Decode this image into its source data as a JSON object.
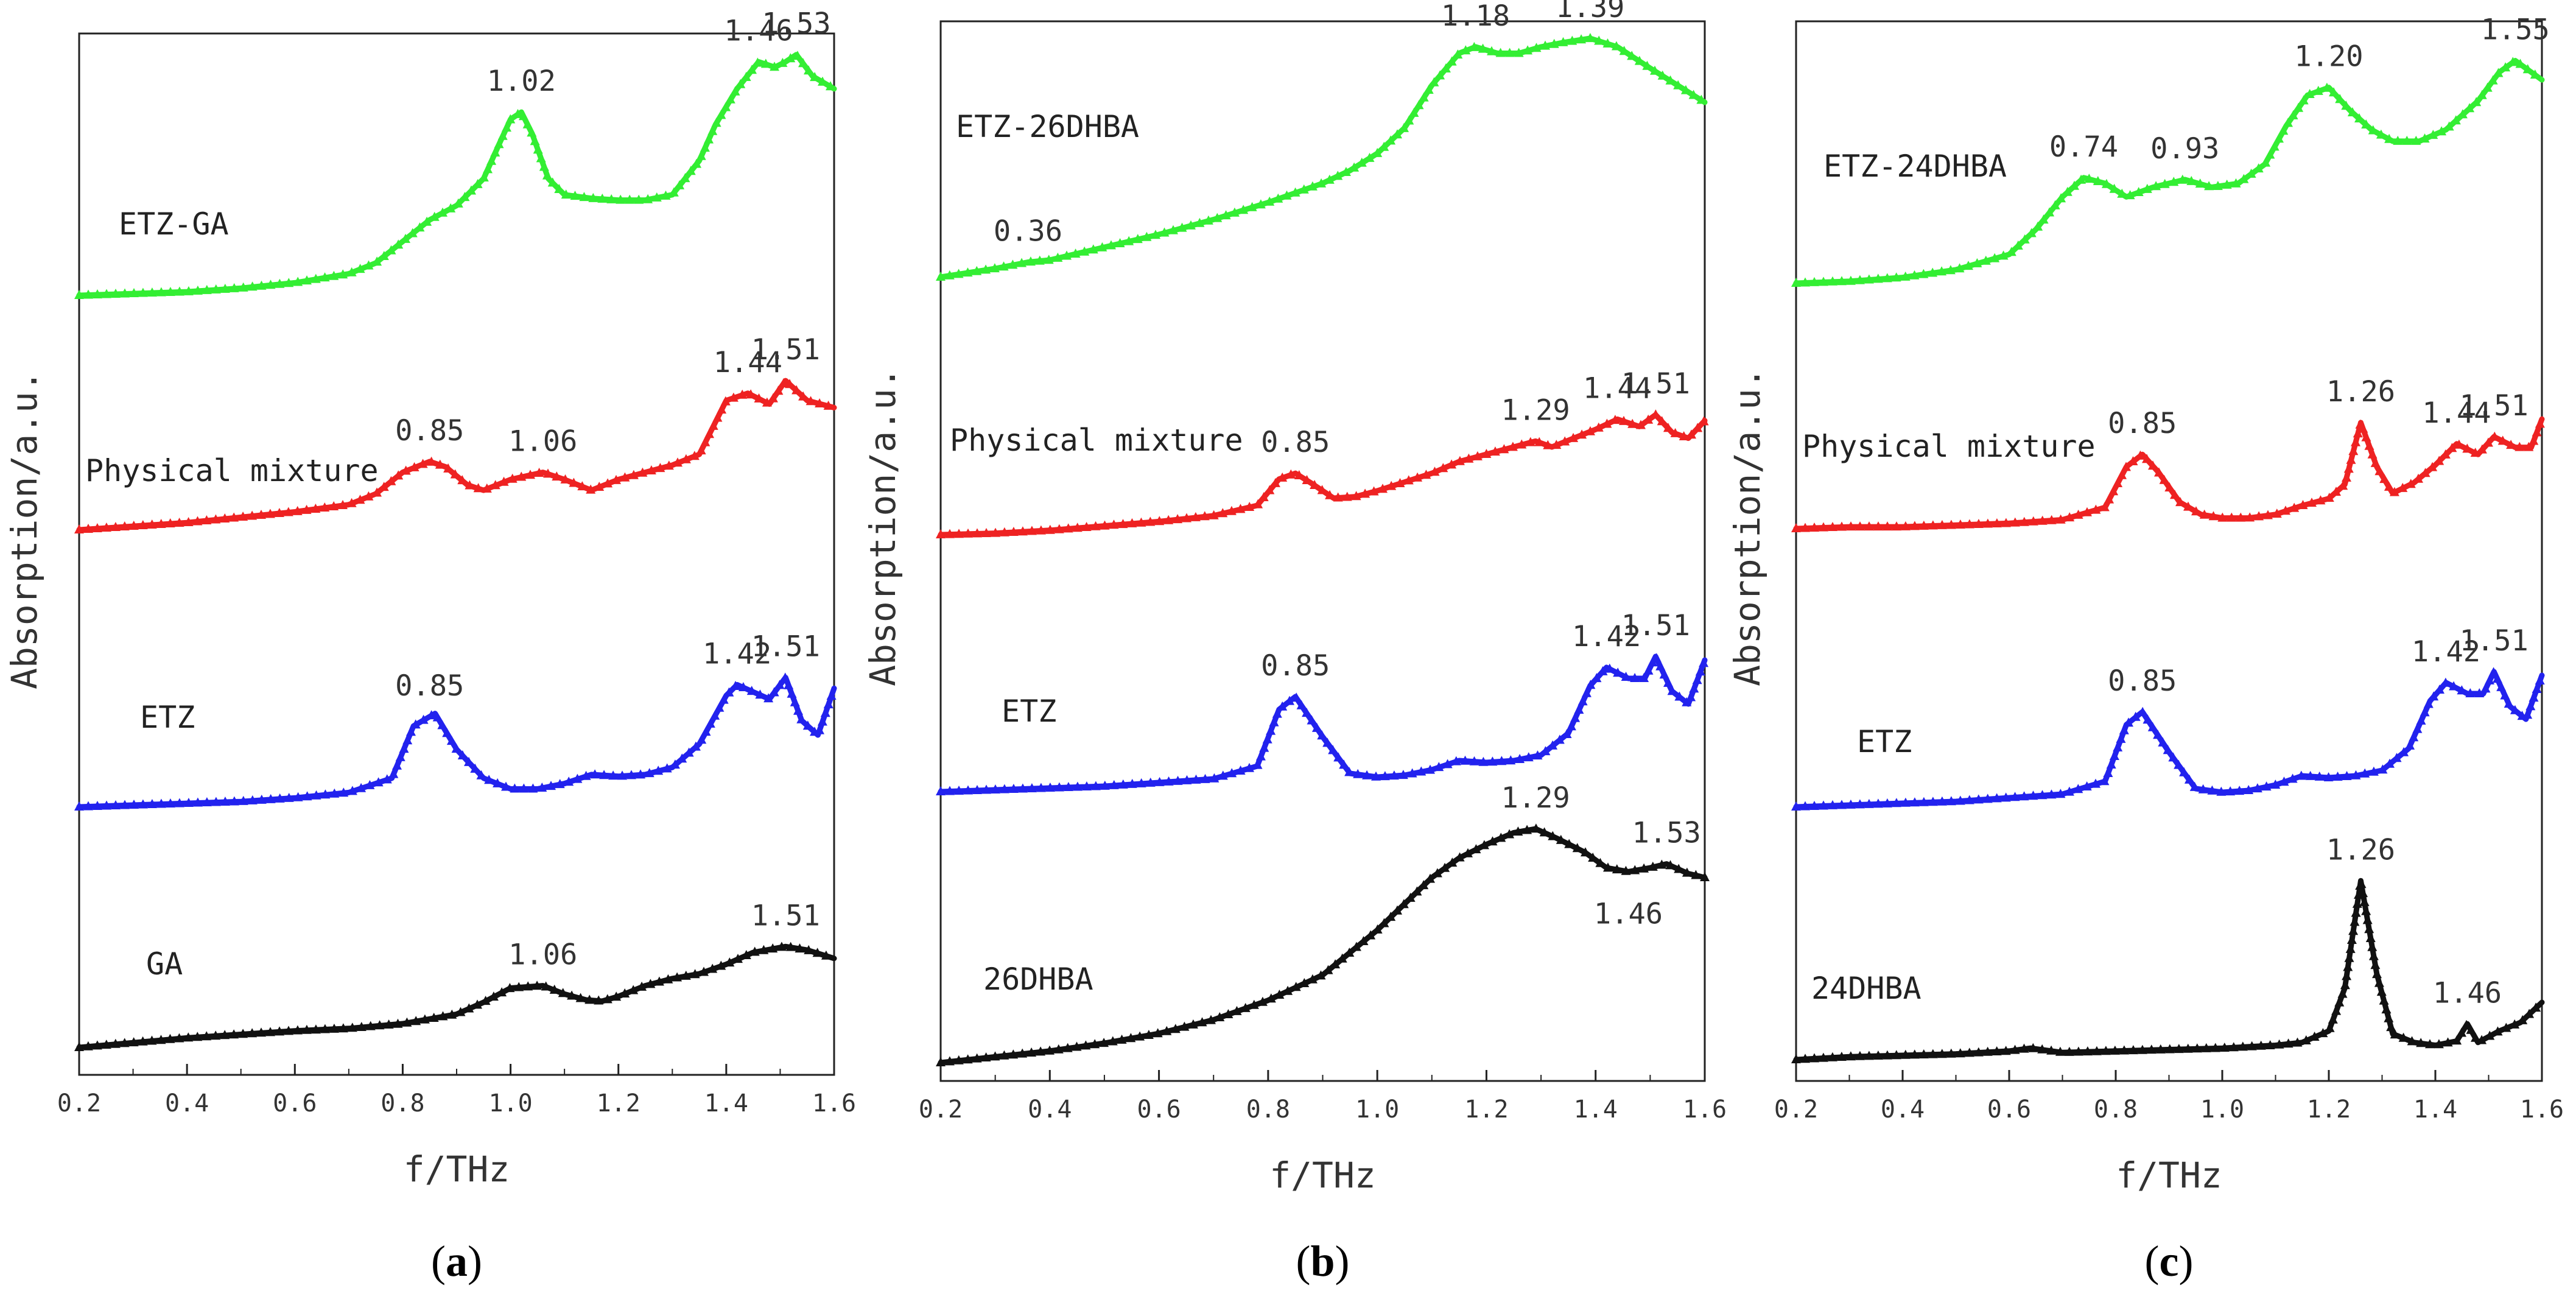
{
  "chart_data": [
    {
      "type": "line",
      "panel_label": "a",
      "xlabel": "f/THz",
      "ylabel": "Absorption/a.u.",
      "xlim": [
        0.2,
        1.6
      ],
      "xticks": [
        "0.2",
        "0.4",
        "0.6",
        "0.8",
        "1.0",
        "1.2",
        "1.4",
        "1.6"
      ],
      "series": [
        {
          "name": "ETZ-GA",
          "color": "#33ee33",
          "offset": 3.0,
          "x": [
            0.2,
            0.3,
            0.4,
            0.5,
            0.6,
            0.7,
            0.75,
            0.8,
            0.85,
            0.9,
            0.95,
            0.98,
            1.0,
            1.02,
            1.04,
            1.07,
            1.1,
            1.15,
            1.2,
            1.25,
            1.3,
            1.35,
            1.38,
            1.42,
            1.46,
            1.49,
            1.51,
            1.53,
            1.56,
            1.6
          ],
          "values": [
            0.0,
            0.01,
            0.02,
            0.04,
            0.07,
            0.12,
            0.18,
            0.3,
            0.42,
            0.5,
            0.65,
            0.85,
            0.98,
            1.02,
            0.9,
            0.65,
            0.56,
            0.54,
            0.53,
            0.53,
            0.56,
            0.75,
            0.95,
            1.15,
            1.3,
            1.27,
            1.3,
            1.34,
            1.22,
            1.15
          ],
          "peaks": [
            {
              "x": 1.02,
              "label": "1.02"
            },
            {
              "x": 1.46,
              "label": "1.46"
            },
            {
              "x": 1.53,
              "label": "1.53"
            }
          ]
        },
        {
          "name": "Physical mixture",
          "color": "#ee2222",
          "offset": 2.0,
          "x": [
            0.2,
            0.3,
            0.4,
            0.5,
            0.6,
            0.7,
            0.75,
            0.8,
            0.85,
            0.88,
            0.92,
            0.95,
            1.0,
            1.06,
            1.1,
            1.15,
            1.2,
            1.25,
            1.3,
            1.35,
            1.4,
            1.44,
            1.48,
            1.51,
            1.55,
            1.6
          ],
          "values": [
            0.0,
            0.02,
            0.04,
            0.07,
            0.1,
            0.14,
            0.2,
            0.32,
            0.38,
            0.35,
            0.25,
            0.22,
            0.28,
            0.32,
            0.28,
            0.22,
            0.28,
            0.32,
            0.36,
            0.42,
            0.72,
            0.76,
            0.7,
            0.83,
            0.72,
            0.68
          ],
          "peaks": [
            {
              "x": 0.85,
              "label": "0.85"
            },
            {
              "x": 1.06,
              "label": "1.06"
            },
            {
              "x": 1.44,
              "label": "1.44"
            },
            {
              "x": 1.51,
              "label": "1.51"
            }
          ]
        },
        {
          "name": "ETZ",
          "color": "#2222ee",
          "offset": 1.0,
          "x": [
            0.2,
            0.3,
            0.4,
            0.5,
            0.6,
            0.7,
            0.78,
            0.82,
            0.86,
            0.9,
            0.95,
            1.0,
            1.05,
            1.1,
            1.15,
            1.2,
            1.25,
            1.3,
            1.35,
            1.4,
            1.42,
            1.45,
            1.48,
            1.51,
            1.54,
            1.57,
            1.6
          ],
          "values": [
            0.0,
            0.01,
            0.02,
            0.03,
            0.05,
            0.08,
            0.16,
            0.45,
            0.52,
            0.32,
            0.16,
            0.1,
            0.1,
            0.13,
            0.18,
            0.17,
            0.18,
            0.22,
            0.35,
            0.62,
            0.68,
            0.64,
            0.6,
            0.72,
            0.48,
            0.4,
            0.66
          ],
          "peaks": [
            {
              "x": 0.85,
              "label": "0.85"
            },
            {
              "x": 1.42,
              "label": "1.42"
            },
            {
              "x": 1.51,
              "label": "1.51"
            }
          ]
        },
        {
          "name": "GA",
          "color": "#111111",
          "offset": 0.0,
          "x": [
            0.2,
            0.3,
            0.4,
            0.5,
            0.6,
            0.7,
            0.8,
            0.9,
            0.95,
            1.0,
            1.06,
            1.1,
            1.14,
            1.17,
            1.2,
            1.25,
            1.3,
            1.35,
            1.4,
            1.45,
            1.51,
            1.55,
            1.6
          ],
          "values": [
            0.0,
            0.04,
            0.08,
            0.11,
            0.14,
            0.16,
            0.2,
            0.28,
            0.38,
            0.5,
            0.52,
            0.45,
            0.4,
            0.39,
            0.43,
            0.52,
            0.58,
            0.62,
            0.7,
            0.8,
            0.85,
            0.82,
            0.75
          ],
          "peaks": [
            {
              "x": 1.06,
              "label": "1.06"
            },
            {
              "x": 1.51,
              "label": "1.51"
            }
          ]
        }
      ]
    },
    {
      "type": "line",
      "panel_label": "b",
      "xlabel": "f/THz",
      "ylabel": "Absorption/a.u.",
      "xlim": [
        0.2,
        1.6
      ],
      "xticks": [
        "0.2",
        "0.4",
        "0.6",
        "0.8",
        "1.0",
        "1.2",
        "1.4",
        "1.6"
      ],
      "series": [
        {
          "name": "ETZ-26DHBA",
          "color": "#33ee33",
          "offset": 3.0,
          "x": [
            0.2,
            0.3,
            0.36,
            0.4,
            0.5,
            0.6,
            0.7,
            0.8,
            0.9,
            0.95,
            1.0,
            1.05,
            1.1,
            1.15,
            1.18,
            1.22,
            1.26,
            1.3,
            1.34,
            1.39,
            1.44,
            1.5,
            1.55,
            1.6
          ],
          "values": [
            0.0,
            0.04,
            0.07,
            0.08,
            0.14,
            0.2,
            0.27,
            0.35,
            0.44,
            0.5,
            0.58,
            0.7,
            0.9,
            1.05,
            1.08,
            1.05,
            1.05,
            1.08,
            1.1,
            1.12,
            1.08,
            0.98,
            0.9,
            0.82
          ],
          "peaks": [
            {
              "x": 0.36,
              "label": "0.36"
            },
            {
              "x": 1.18,
              "label": "1.18"
            },
            {
              "x": 1.39,
              "label": "1.39"
            }
          ]
        },
        {
          "name": "Physical mixture",
          "color": "#ee2222",
          "offset": 2.0,
          "x": [
            0.2,
            0.3,
            0.4,
            0.5,
            0.6,
            0.7,
            0.78,
            0.82,
            0.85,
            0.88,
            0.92,
            0.96,
            1.0,
            1.05,
            1.1,
            1.15,
            1.2,
            1.25,
            1.29,
            1.32,
            1.36,
            1.4,
            1.44,
            1.48,
            1.51,
            1.54,
            1.57,
            1.6
          ],
          "values": [
            0.0,
            0.01,
            0.03,
            0.06,
            0.09,
            0.13,
            0.2,
            0.38,
            0.42,
            0.35,
            0.25,
            0.26,
            0.3,
            0.36,
            0.42,
            0.5,
            0.55,
            0.6,
            0.64,
            0.6,
            0.66,
            0.72,
            0.79,
            0.74,
            0.82,
            0.7,
            0.66,
            0.78
          ],
          "peaks": [
            {
              "x": 0.85,
              "label": "0.85"
            },
            {
              "x": 1.29,
              "label": "1.29"
            },
            {
              "x": 1.44,
              "label": "1.44"
            },
            {
              "x": 1.51,
              "label": "1.51"
            }
          ]
        },
        {
          "name": "ETZ",
          "color": "#2222ee",
          "offset": 1.0,
          "x": [
            0.2,
            0.3,
            0.4,
            0.5,
            0.6,
            0.7,
            0.78,
            0.82,
            0.85,
            0.9,
            0.95,
            1.0,
            1.05,
            1.1,
            1.15,
            1.2,
            1.25,
            1.3,
            1.35,
            1.39,
            1.42,
            1.46,
            1.49,
            1.51,
            1.54,
            1.57,
            1.6
          ],
          "values": [
            0.0,
            0.01,
            0.02,
            0.03,
            0.05,
            0.07,
            0.14,
            0.45,
            0.52,
            0.3,
            0.1,
            0.08,
            0.09,
            0.12,
            0.17,
            0.16,
            0.17,
            0.2,
            0.32,
            0.58,
            0.68,
            0.62,
            0.62,
            0.74,
            0.55,
            0.48,
            0.72
          ],
          "peaks": [
            {
              "x": 0.85,
              "label": "0.85"
            },
            {
              "x": 1.42,
              "label": "1.42"
            },
            {
              "x": 1.51,
              "label": "1.51"
            }
          ]
        },
        {
          "name": "26DHBA",
          "color": "#111111",
          "offset": 0.0,
          "x": [
            0.2,
            0.3,
            0.4,
            0.5,
            0.6,
            0.7,
            0.8,
            0.9,
            1.0,
            1.1,
            1.15,
            1.2,
            1.25,
            1.29,
            1.33,
            1.38,
            1.42,
            1.46,
            1.5,
            1.53,
            1.57,
            1.6
          ],
          "values": [
            0.0,
            0.03,
            0.06,
            0.1,
            0.15,
            0.22,
            0.32,
            0.45,
            0.68,
            0.95,
            1.05,
            1.12,
            1.18,
            1.2,
            1.15,
            1.08,
            1.0,
            0.98,
            1.0,
            1.02,
            0.97,
            0.95
          ],
          "peaks": [
            {
              "x": 1.29,
              "label": "1.29"
            },
            {
              "x": 1.46,
              "label": "1.46"
            },
            {
              "x": 1.53,
              "label": "1.53"
            }
          ]
        }
      ]
    },
    {
      "type": "line",
      "panel_label": "c",
      "xlabel": "f/THz",
      "ylabel": "Absorption/a.u.",
      "xlim": [
        0.2,
        1.6
      ],
      "xticks": [
        "0.2",
        "0.4",
        "0.6",
        "0.8",
        "1.0",
        "1.2",
        "1.4",
        "1.6"
      ],
      "series": [
        {
          "name": "ETZ-24DHBA",
          "color": "#33ee33",
          "offset": 3.0,
          "x": [
            0.2,
            0.3,
            0.4,
            0.5,
            0.6,
            0.65,
            0.7,
            0.74,
            0.78,
            0.82,
            0.87,
            0.93,
            0.98,
            1.03,
            1.08,
            1.12,
            1.16,
            1.2,
            1.24,
            1.28,
            1.32,
            1.37,
            1.42,
            1.48,
            1.52,
            1.55,
            1.58,
            1.6
          ],
          "values": [
            0.0,
            0.01,
            0.03,
            0.07,
            0.15,
            0.28,
            0.45,
            0.55,
            0.52,
            0.45,
            0.5,
            0.54,
            0.5,
            0.52,
            0.62,
            0.82,
            0.98,
            1.02,
            0.9,
            0.8,
            0.74,
            0.74,
            0.8,
            0.95,
            1.1,
            1.16,
            1.1,
            1.06
          ],
          "peaks": [
            {
              "x": 0.74,
              "label": "0.74"
            },
            {
              "x": 0.93,
              "label": "0.93"
            },
            {
              "x": 1.2,
              "label": "1.20"
            },
            {
              "x": 1.55,
              "label": "1.55"
            }
          ]
        },
        {
          "name": "Physical mixture",
          "color": "#ee2222",
          "offset": 2.0,
          "x": [
            0.2,
            0.3,
            0.4,
            0.5,
            0.6,
            0.7,
            0.78,
            0.82,
            0.85,
            0.88,
            0.92,
            0.96,
            1.0,
            1.05,
            1.1,
            1.15,
            1.2,
            1.23,
            1.26,
            1.29,
            1.32,
            1.36,
            1.4,
            1.44,
            1.48,
            1.51,
            1.55,
            1.58,
            1.6
          ],
          "values": [
            0.0,
            0.01,
            0.01,
            0.02,
            0.03,
            0.05,
            0.12,
            0.35,
            0.42,
            0.32,
            0.15,
            0.08,
            0.06,
            0.06,
            0.08,
            0.13,
            0.17,
            0.25,
            0.6,
            0.35,
            0.2,
            0.26,
            0.36,
            0.48,
            0.42,
            0.52,
            0.46,
            0.46,
            0.62
          ],
          "peaks": [
            {
              "x": 0.85,
              "label": "0.85"
            },
            {
              "x": 1.26,
              "label": "1.26"
            },
            {
              "x": 1.44,
              "label": "1.44"
            },
            {
              "x": 1.51,
              "label": "1.51"
            }
          ]
        },
        {
          "name": "ETZ",
          "color": "#2222ee",
          "offset": 1.0,
          "x": [
            0.2,
            0.3,
            0.4,
            0.5,
            0.6,
            0.7,
            0.78,
            0.82,
            0.85,
            0.9,
            0.95,
            1.0,
            1.05,
            1.1,
            1.15,
            1.2,
            1.25,
            1.3,
            1.35,
            1.39,
            1.42,
            1.46,
            1.49,
            1.51,
            1.54,
            1.57,
            1.6
          ],
          "values": [
            0.0,
            0.01,
            0.02,
            0.03,
            0.05,
            0.07,
            0.14,
            0.45,
            0.52,
            0.3,
            0.1,
            0.08,
            0.09,
            0.12,
            0.17,
            0.16,
            0.17,
            0.2,
            0.32,
            0.58,
            0.68,
            0.62,
            0.62,
            0.74,
            0.55,
            0.48,
            0.72
          ],
          "peaks": [
            {
              "x": 0.85,
              "label": "0.85"
            },
            {
              "x": 1.42,
              "label": "1.42"
            },
            {
              "x": 1.51,
              "label": "1.51"
            }
          ]
        },
        {
          "name": "24DHBA",
          "color": "#111111",
          "offset": 0.0,
          "x": [
            0.2,
            0.3,
            0.4,
            0.5,
            0.6,
            0.64,
            0.7,
            0.8,
            0.9,
            1.0,
            1.1,
            1.15,
            1.2,
            1.23,
            1.26,
            1.29,
            1.32,
            1.36,
            1.4,
            1.44,
            1.46,
            1.48,
            1.52,
            1.56,
            1.6
          ],
          "values": [
            0.0,
            0.02,
            0.03,
            0.04,
            0.06,
            0.08,
            0.05,
            0.06,
            0.07,
            0.08,
            0.1,
            0.12,
            0.2,
            0.5,
            1.25,
            0.6,
            0.18,
            0.12,
            0.1,
            0.13,
            0.25,
            0.12,
            0.2,
            0.26,
            0.4
          ],
          "peaks": [
            {
              "x": 1.26,
              "label": "1.26"
            },
            {
              "x": 1.46,
              "label": "1.46"
            }
          ]
        }
      ]
    }
  ]
}
